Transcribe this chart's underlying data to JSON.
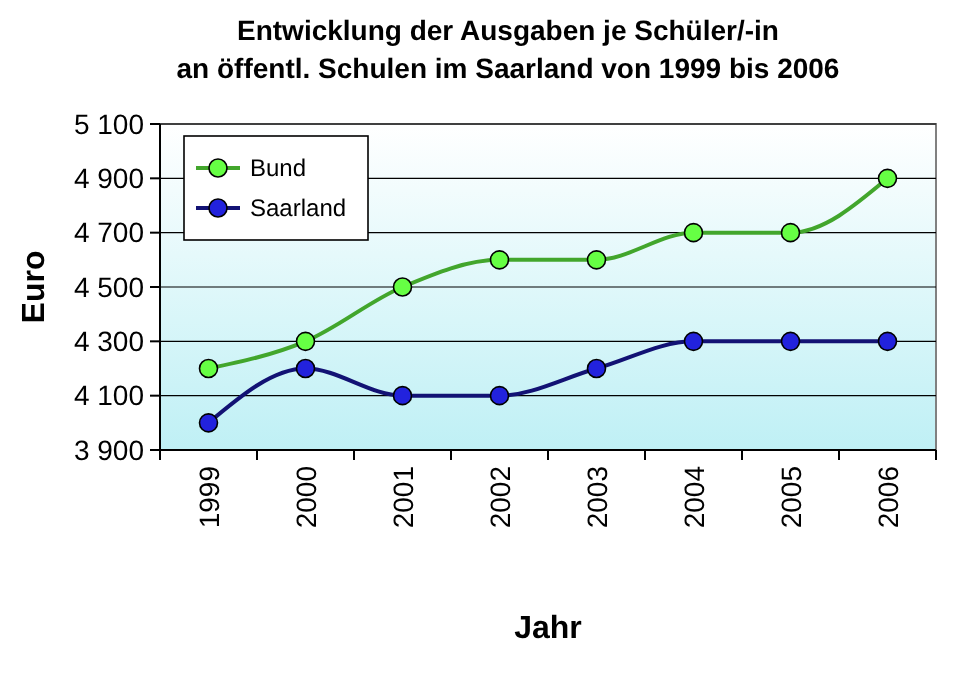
{
  "chart_data": {
    "type": "line",
    "title": "Entwicklung der Ausgaben je Schüler/-in\nan öffentl. Schulen im Saarland von 1999 bis 2006",
    "xlabel": "Jahr",
    "ylabel": "Euro",
    "categories": [
      "1999",
      "2000",
      "2001",
      "2002",
      "2003",
      "2004",
      "2005",
      "2006"
    ],
    "series": [
      {
        "name": "Bund",
        "color": "#66ff44",
        "values": [
          4200,
          4300,
          4500,
          4600,
          4600,
          4700,
          4700,
          4900
        ]
      },
      {
        "name": "Saarland",
        "color": "#2222dd",
        "values": [
          4000,
          4200,
          4100,
          4100,
          4200,
          4300,
          4300,
          4300
        ]
      }
    ],
    "ylim": [
      3900,
      5100
    ],
    "yticks": [
      {
        "value": 3900,
        "label": "3 900"
      },
      {
        "value": 4100,
        "label": "4 100"
      },
      {
        "value": 4300,
        "label": "4 300"
      },
      {
        "value": 4500,
        "label": "4 500"
      },
      {
        "value": 4700,
        "label": "4 700"
      },
      {
        "value": 4900,
        "label": "4 900"
      },
      {
        "value": 5100,
        "label": "5 100"
      }
    ],
    "grid": "y",
    "legend": "top left",
    "marker": "circle",
    "line_style": "solid"
  }
}
